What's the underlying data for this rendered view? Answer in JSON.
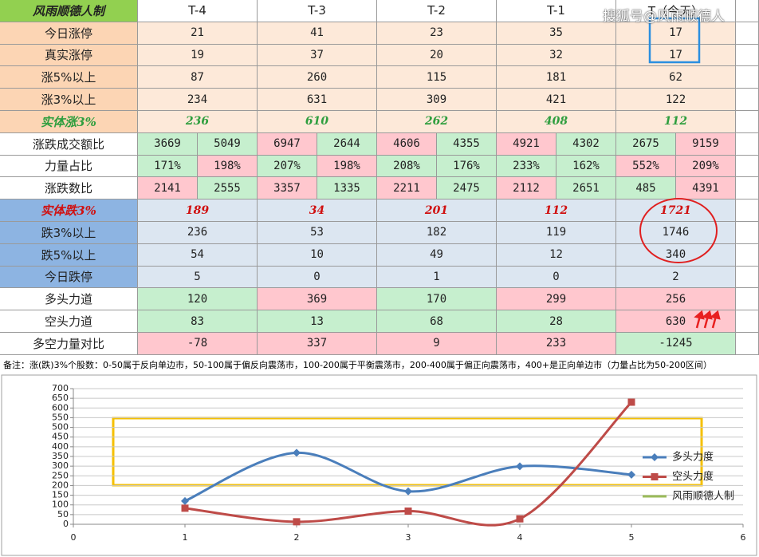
{
  "watermark": "搜狐号@风雨顺德人",
  "table": {
    "header": [
      "风雨顺德人制",
      "T-4",
      "T-3",
      "T-2",
      "T-1",
      "T（今天）"
    ],
    "header_fill": "#92d050",
    "rows": [
      {
        "label": "今日涨停",
        "label_fill": "#fcd5b4",
        "fill": "#fde9d9",
        "values": [
          21,
          41,
          23,
          35,
          17
        ]
      },
      {
        "label": "真实涨停",
        "label_fill": "#fcd5b4",
        "fill": "#fde9d9",
        "values": [
          19,
          37,
          20,
          32,
          17
        ]
      },
      {
        "label": "涨5%以上",
        "label_fill": "#fcd5b4",
        "fill": "#fde9d9",
        "values": [
          87,
          260,
          115,
          181,
          62
        ]
      },
      {
        "label": "涨3%以上",
        "label_fill": "#fcd5b4",
        "fill": "#fde9d9",
        "values": [
          234,
          631,
          309,
          421,
          122
        ]
      },
      {
        "label": "实体涨3%",
        "label_fill": "#fcd5b4",
        "fill": "#fde9d9",
        "text_color": "#2e9e3e",
        "emphasis": true,
        "values": [
          236,
          610,
          262,
          408,
          112
        ]
      },
      {
        "label": "涨跌成交额比",
        "label_fill": "#ffffff",
        "fill": [
          [
            "#c6efce",
            "#c6efce"
          ],
          [
            "#ffc7ce",
            "#c6efce"
          ],
          [
            "#ffc7ce",
            "#c6efce"
          ],
          [
            "#ffc7ce",
            "#c6efce"
          ],
          [
            "#c6efce",
            "#ffc7ce"
          ]
        ],
        "values": [
          [
            3669,
            5049
          ],
          [
            6947,
            2644
          ],
          [
            4606,
            4355
          ],
          [
            4921,
            4302
          ],
          [
            2675,
            9159
          ]
        ]
      },
      {
        "label": "力量占比",
        "label_fill": "#ffffff",
        "fill": [
          [
            "#c6efce",
            "#ffc7ce"
          ],
          [
            "#c6efce",
            "#ffc7ce"
          ],
          [
            "#c6efce",
            "#c6efce"
          ],
          [
            "#c6efce",
            "#c6efce"
          ],
          [
            "#ffc7ce",
            "#ffc7ce"
          ]
        ],
        "values": [
          [
            "171%",
            "198%"
          ],
          [
            "207%",
            "198%"
          ],
          [
            "208%",
            "176%"
          ],
          [
            "233%",
            "162%"
          ],
          [
            "552%",
            "209%"
          ]
        ]
      },
      {
        "label": "涨跌数比",
        "label_fill": "#ffffff",
        "fill": [
          [
            "#ffc7ce",
            "#c6efce"
          ],
          [
            "#ffc7ce",
            "#c6efce"
          ],
          [
            "#ffc7ce",
            "#c6efce"
          ],
          [
            "#ffc7ce",
            "#c6efce"
          ],
          [
            "#c6efce",
            "#ffc7ce"
          ]
        ],
        "values": [
          [
            2141,
            2555
          ],
          [
            3357,
            1335
          ],
          [
            2211,
            2475
          ],
          [
            2112,
            2651
          ],
          [
            485,
            4391
          ]
        ]
      },
      {
        "label": "实体跌3%",
        "label_fill": "#8db4e2",
        "fill": "#dce6f1",
        "text_color": "#d01010",
        "emphasis": true,
        "values": [
          189,
          34,
          201,
          112,
          1721
        ]
      },
      {
        "label": "跌3%以上",
        "label_fill": "#8db4e2",
        "fill": "#dce6f1",
        "values": [
          236,
          53,
          182,
          119,
          1746
        ]
      },
      {
        "label": "跌5%以上",
        "label_fill": "#8db4e2",
        "fill": "#dce6f1",
        "values": [
          54,
          10,
          49,
          12,
          340
        ]
      },
      {
        "label": "今日跌停",
        "label_fill": "#8db4e2",
        "fill": "#dce6f1",
        "values": [
          5,
          0,
          1,
          0,
          2
        ]
      },
      {
        "label": "多头力道",
        "label_fill": "#ffffff",
        "fill": [
          "#c6efce",
          "#ffc7ce",
          "#c6efce",
          "#ffc7ce",
          "#ffc7ce"
        ],
        "values": [
          120,
          369,
          170,
          299,
          256
        ]
      },
      {
        "label": "空头力道",
        "label_fill": "#ffffff",
        "fill": [
          "#c6efce",
          "#c6efce",
          "#c6efce",
          "#c6efce",
          "#ffc7ce"
        ],
        "values": [
          83,
          13,
          68,
          28,
          630
        ]
      },
      {
        "label": "多空力量对比",
        "label_fill": "#ffffff",
        "fill": [
          "#ffc7ce",
          "#ffc7ce",
          "#ffc7ce",
          "#ffc7ce",
          "#c6efce"
        ],
        "values": [
          -78,
          337,
          9,
          233,
          -1245
        ]
      }
    ]
  },
  "note": "备注：涨(跌)3%个股数：0-50属于反向单边市，50-100属于偏反向震荡市，100-200属于平衡震荡市，200-400属于偏正向震荡市，400+是正向单边市（力量占比为50-200区间）",
  "chart_data": {
    "type": "line",
    "smooth": true,
    "grid": true,
    "legend": "right",
    "x": [
      1,
      2,
      3,
      4,
      5
    ],
    "xlim": [
      0,
      6
    ],
    "xticks": [
      0,
      1,
      2,
      3,
      4,
      5,
      6
    ],
    "ylim": [
      0,
      700
    ],
    "yticks": [
      0,
      50,
      100,
      150,
      200,
      250,
      300,
      350,
      400,
      450,
      500,
      550,
      600,
      650,
      700
    ],
    "series": [
      {
        "name": "多头力度",
        "color": "#4a7ebb",
        "marker": "diamond",
        "values": [
          120,
          369,
          170,
          299,
          256
        ]
      },
      {
        "name": "空头力度",
        "color": "#be4b48",
        "marker": "square",
        "values": [
          83,
          13,
          68,
          28,
          630
        ]
      },
      {
        "name": "风雨顺德人制",
        "color": "#9bbb59",
        "marker": "none",
        "values": [
          null,
          null,
          null,
          null,
          null
        ]
      }
    ]
  }
}
